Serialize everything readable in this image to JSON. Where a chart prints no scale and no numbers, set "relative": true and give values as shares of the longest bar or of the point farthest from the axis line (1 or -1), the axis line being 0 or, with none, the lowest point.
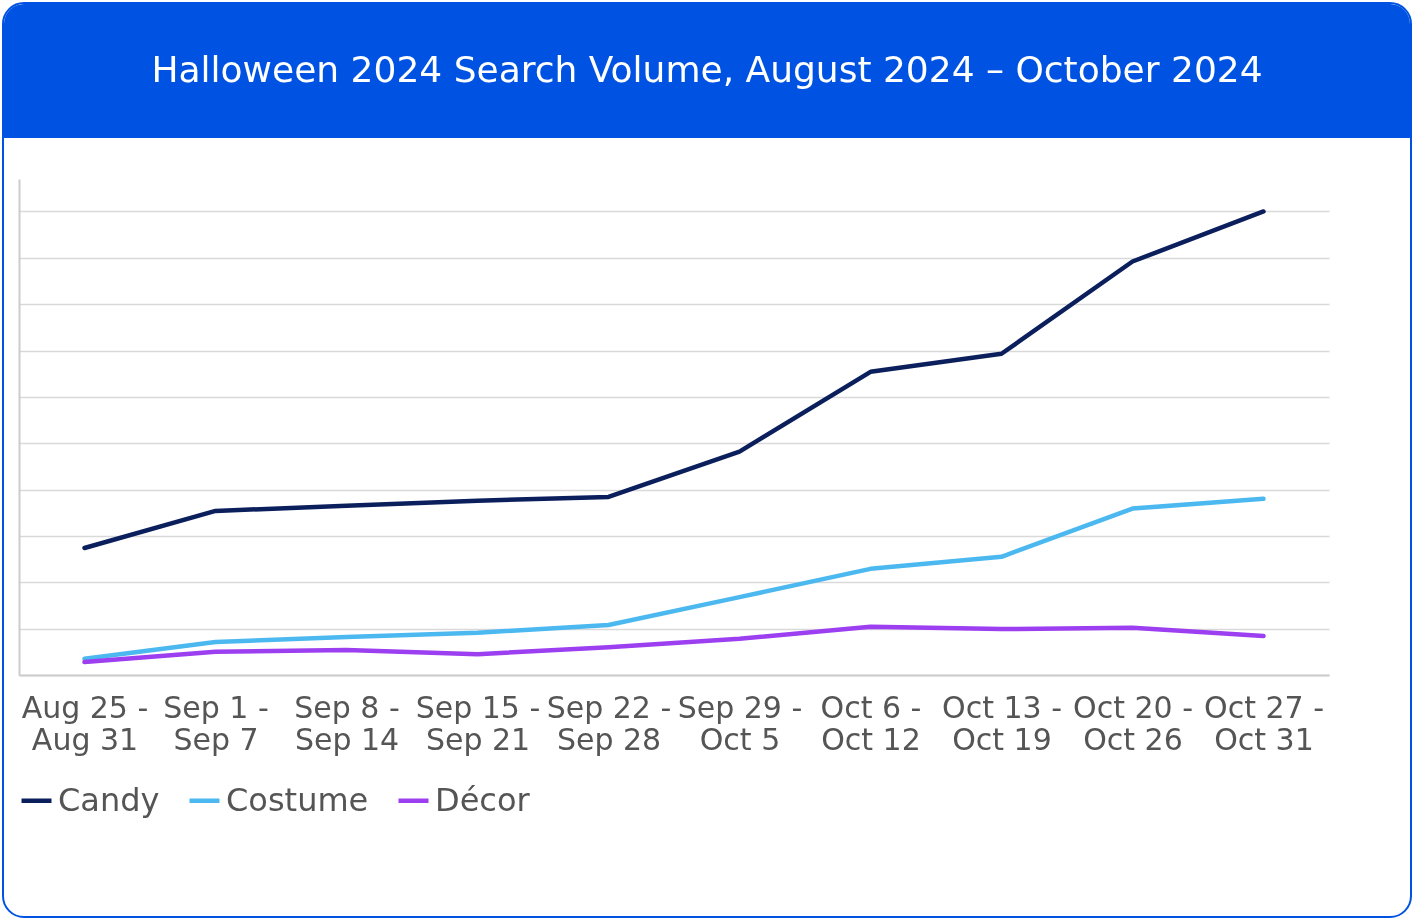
{
  "chart_data": {
    "type": "line",
    "title": "Halloween 2024 Search Volume, August 2024 – October 2024",
    "relative": true,
    "grid": "y",
    "legend": "bottom",
    "line_style": "solid",
    "marker": "none",
    "categories": [
      "Aug 25 - Aug 31",
      "Sep 1 - Sep 7",
      "Sep 8 - Sep 14",
      "Sep 15 - Sep 21",
      "Sep 22 - Sep 28",
      "Sep 29 - Oct 5",
      "Oct 6 - Oct 12",
      "Oct 13 - Oct 19",
      "Oct 20 - Oct 26",
      "Oct 27 - Oct 31"
    ],
    "series": [
      {
        "name": "Candy",
        "color": "#0b1f5c",
        "values": [
          0.274,
          0.354,
          0.365,
          0.376,
          0.384,
          0.482,
          0.654,
          0.693,
          0.892,
          1
        ]
      },
      {
        "name": "Costume",
        "color": "#4cb8f0",
        "values": [
          0.035,
          0.071,
          0.082,
          0.091,
          0.108,
          0.168,
          0.229,
          0.255,
          0.359,
          0.38
        ]
      },
      {
        "name": "Décor",
        "color": "#9b3ff0",
        "values": [
          0.028,
          0.05,
          0.054,
          0.045,
          0.06,
          0.078,
          0.104,
          0.099,
          0.102,
          0.084
        ]
      }
    ]
  }
}
